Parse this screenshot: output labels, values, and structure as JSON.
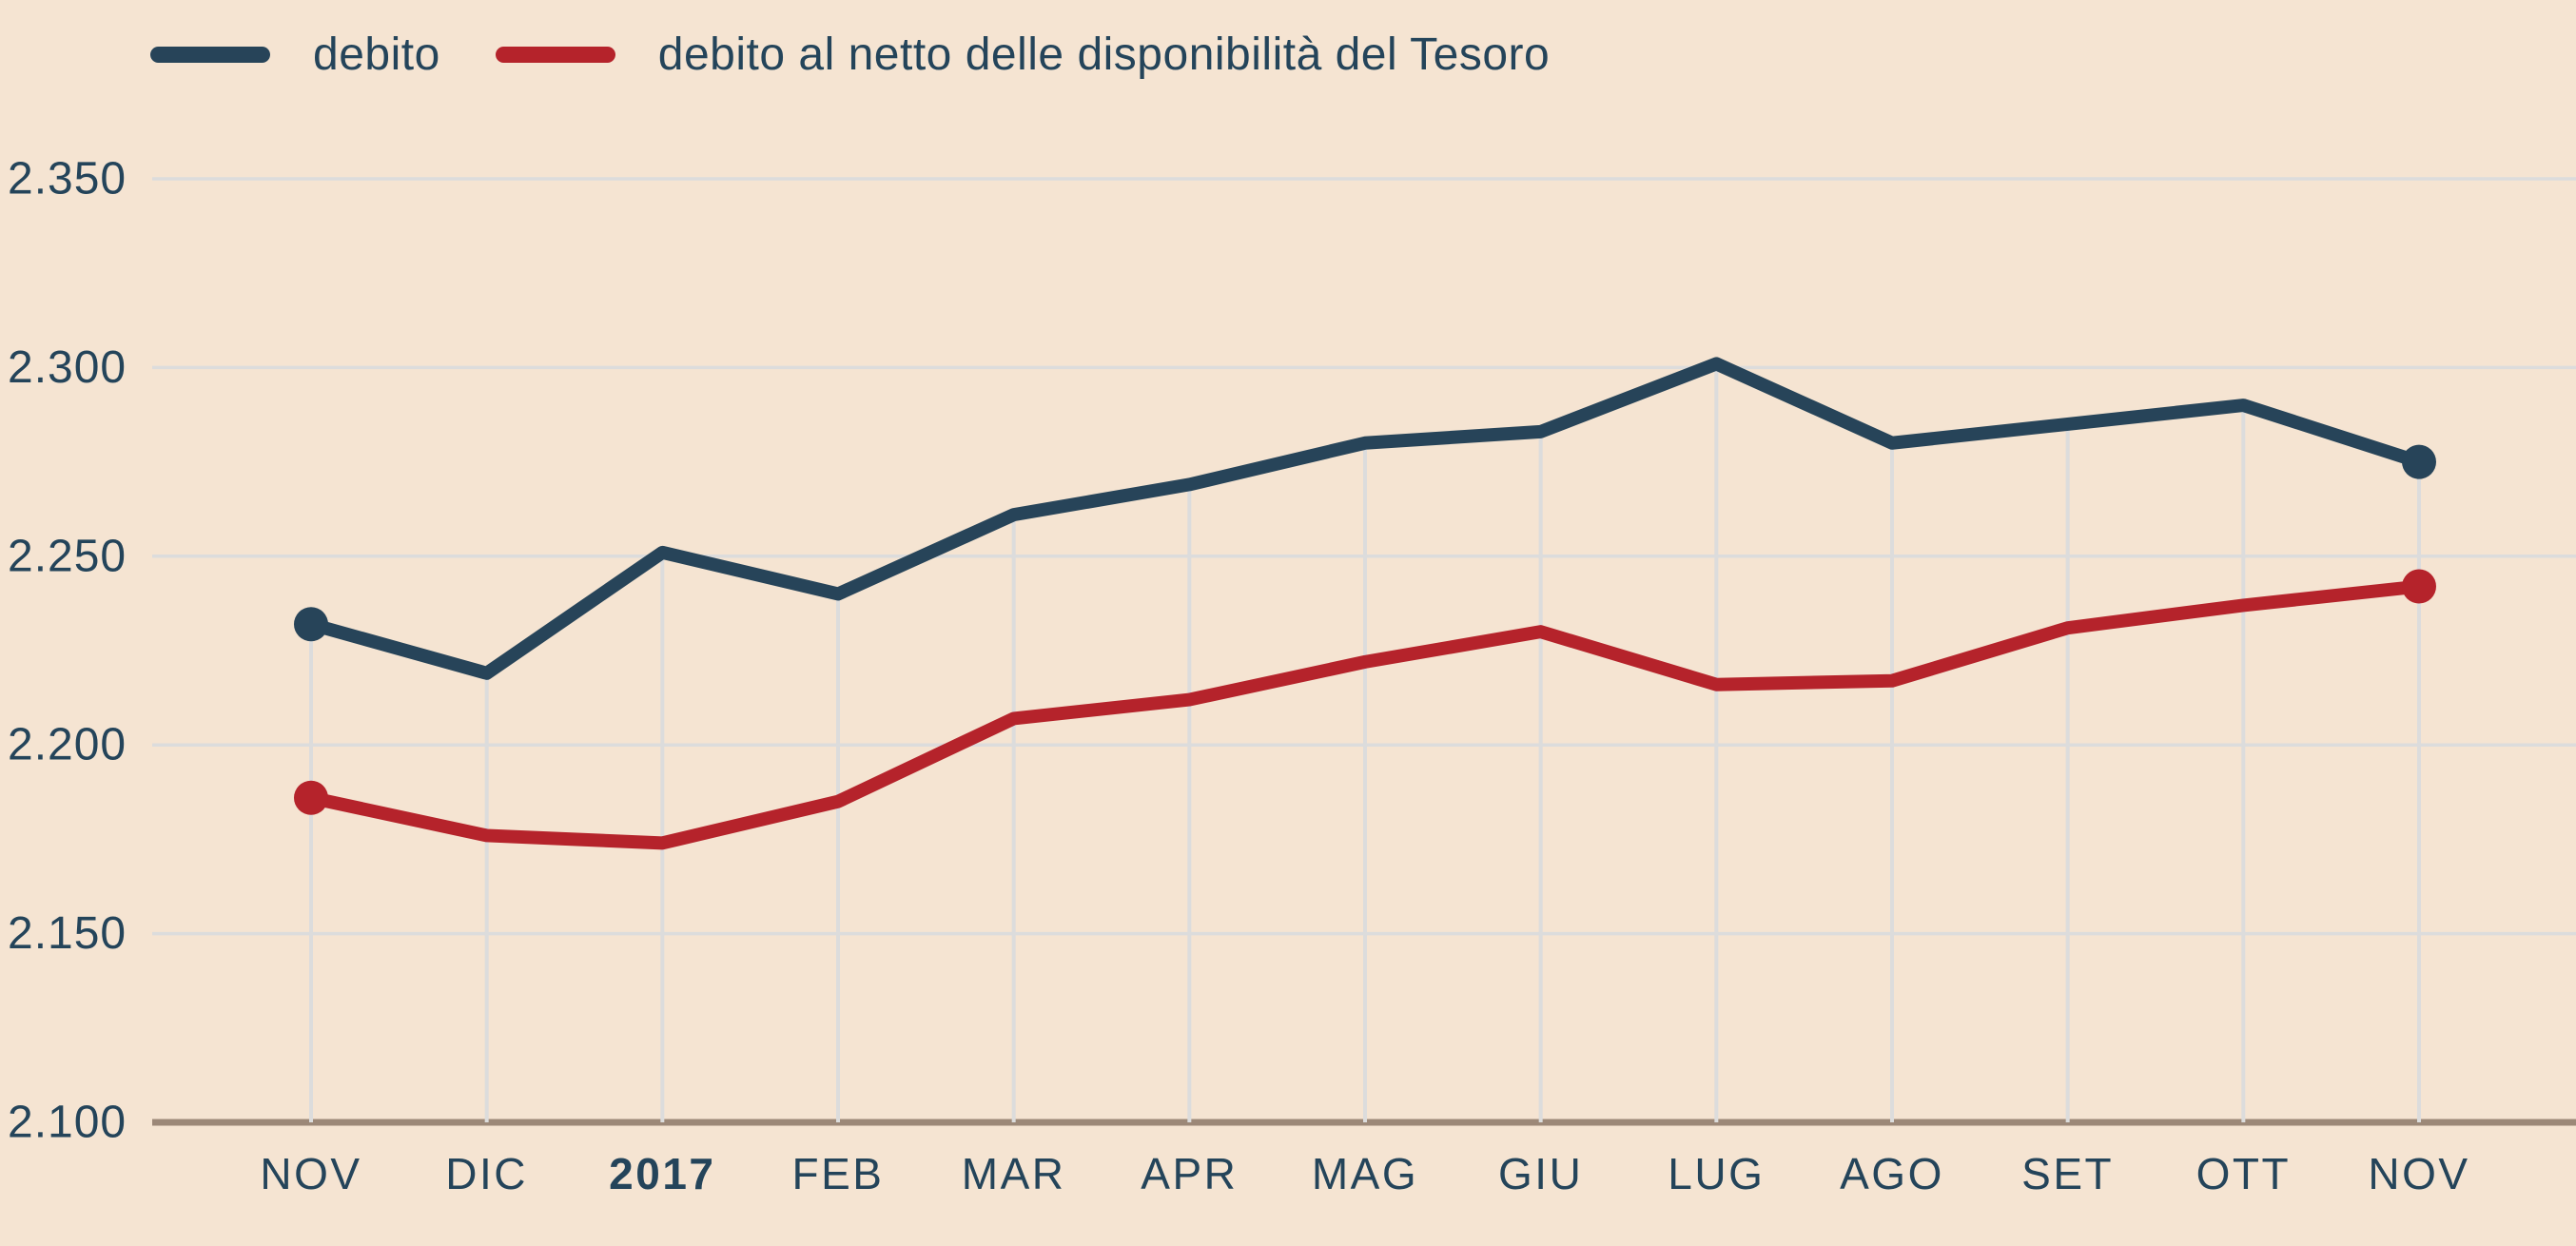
{
  "chart_data": {
    "type": "line",
    "title": "",
    "categories": [
      "NOV",
      "DIC",
      "2017",
      "FEB",
      "MAR",
      "APR",
      "MAG",
      "GIU",
      "LUG",
      "AGO",
      "SET",
      "OTT",
      "NOV"
    ],
    "bold_category": "2017",
    "series": [
      {
        "name": "debito",
        "color": "#274459",
        "values": [
          2232,
          2219,
          2251,
          2240,
          2261,
          2269,
          2280,
          2283,
          2301,
          2280,
          2285,
          2290,
          2275
        ],
        "endpoint_markers": true
      },
      {
        "name": "debito al netto delle disponibilità del Tesoro",
        "color": "#b5232b",
        "values": [
          2186,
          2176,
          2174,
          2185,
          2207,
          2212,
          2222,
          2230,
          2216,
          2217,
          2231,
          2237,
          2242
        ],
        "endpoint_markers": true
      }
    ],
    "ylim": [
      2100,
      2350
    ],
    "yticks": [
      {
        "value": 2350,
        "label": "2.350"
      },
      {
        "value": 2300,
        "label": "2.300"
      },
      {
        "value": 2250,
        "label": "2.250"
      },
      {
        "value": 2200,
        "label": "2.200"
      },
      {
        "value": 2150,
        "label": "2.150"
      },
      {
        "value": 2100,
        "label": "2.100"
      }
    ],
    "grid": {
      "horizontal": true,
      "vertical_droplines_from_series": "debito"
    },
    "legend_position": "top-left",
    "colors": {
      "background": "#f5e4d2",
      "grid": "#dcdcdc",
      "axis": "#9c8878",
      "text": "#24445a"
    }
  }
}
